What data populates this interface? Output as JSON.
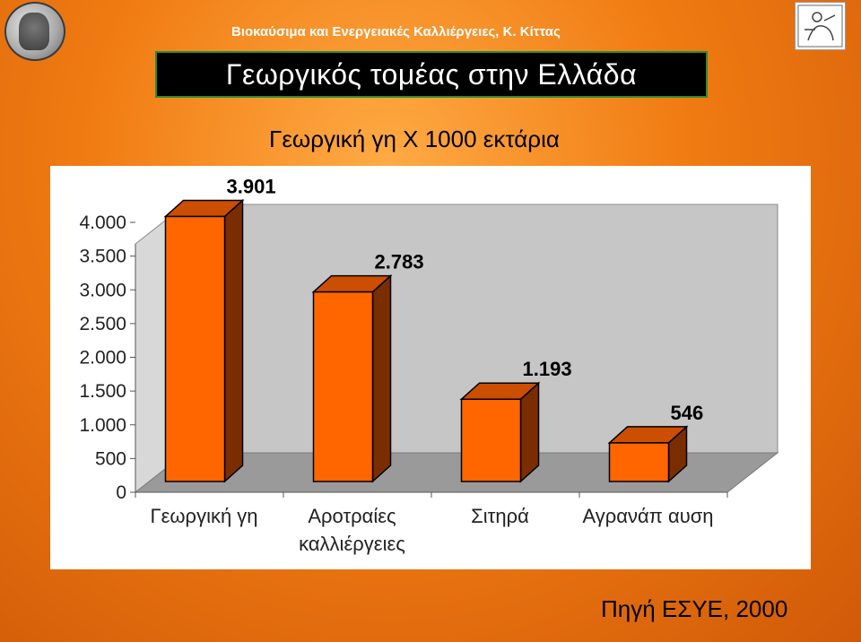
{
  "header": {
    "course_line": "Βιοκαύσιμα και Ενεργειακές Καλλιέργειες, Κ. Κίττας",
    "slide_title": "Γεωργικός τομέας στην Ελλάδα"
  },
  "source_note": "Πηγή ΕΣΥΕ, 2000",
  "chart_data": {
    "type": "bar",
    "title": "Γεωργική γη Χ 1000 εκτάρια",
    "categories": [
      "Γεωργική γη",
      "Αροτραίες καλλιέργειες",
      "Σιτηρά",
      "Αγρανάπαυση"
    ],
    "category_lines": [
      [
        "Γεωργική γη"
      ],
      [
        "Αροτραίες",
        "καλλιέργειες"
      ],
      [
        "Σιτηρά"
      ],
      [
        "Αγρανάπ αυση"
      ]
    ],
    "values": [
      3901,
      2783,
      1193,
      546
    ],
    "value_labels": [
      "3.901",
      "2.783",
      "1.193",
      "546"
    ],
    "ylim": [
      0,
      4000
    ],
    "yticks": [
      0,
      500,
      1000,
      1500,
      2000,
      2500,
      3000,
      3500,
      4000
    ],
    "ytick_labels": [
      "0",
      "500",
      "1.000",
      "1.500",
      "2.000",
      "2.500",
      "3.000",
      "3.500",
      "4.000"
    ],
    "xlabel": "",
    "ylabel": "",
    "grid": false,
    "legend": "none",
    "bar_3d": true,
    "colors": {
      "bar_front": "#ff6600",
      "bar_top": "#cc4e00",
      "bar_side": "#7a2e00",
      "back_wall": "#c6c6c6",
      "floor": "#9a9a9a"
    }
  }
}
